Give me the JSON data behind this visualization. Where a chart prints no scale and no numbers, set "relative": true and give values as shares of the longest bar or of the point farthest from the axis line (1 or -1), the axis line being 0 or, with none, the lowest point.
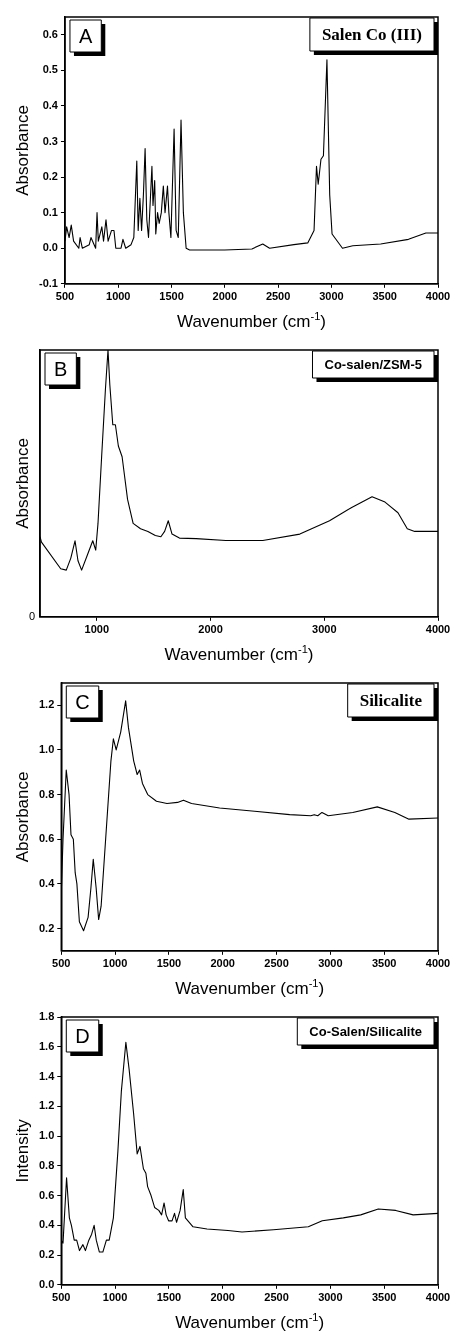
{
  "chart_data": [
    {
      "type": "line",
      "title": "Salen Co (III)",
      "annotations": [
        "A"
      ],
      "xlabel": "Wavenumber (cm$^{-1}$)",
      "ylabel": "Absorbance",
      "color": "#000000",
      "x": [
        500,
        516,
        539,
        559,
        581,
        630,
        642,
        663,
        728,
        744,
        788,
        801,
        813,
        846,
        862,
        885,
        905,
        937,
        960,
        977,
        1026,
        1044,
        1070,
        1120,
        1146,
        1174,
        1187,
        1203,
        1219,
        1236,
        1252,
        1268,
        1284,
        1316,
        1326,
        1342,
        1352,
        1369,
        1384,
        1404,
        1423,
        1439,
        1462,
        1475,
        1494,
        1524,
        1543,
        1563,
        1589,
        1611,
        1637,
        1670,
        1800,
        1998,
        2254,
        2356,
        2420,
        2648,
        2778,
        2837,
        2860,
        2876,
        2902,
        2925,
        2958,
        2984,
        3006,
        3104,
        3201,
        3462,
        3723,
        3886,
        4000
      ],
      "values": [
        0.02,
        0.06,
        0.03,
        0.065,
        0.02,
        0.0,
        0.03,
        0.0,
        0.01,
        0.03,
        0.0,
        0.1,
        0.02,
        0.06,
        0.02,
        0.08,
        0.02,
        0.05,
        0.05,
        0.0,
        0.0,
        0.025,
        0.0,
        0.01,
        0.03,
        0.245,
        0.05,
        0.14,
        0.05,
        0.15,
        0.28,
        0.08,
        0.03,
        0.23,
        0.12,
        0.19,
        0.04,
        0.1,
        0.07,
        0.1,
        0.175,
        0.1,
        0.175,
        0.1,
        0.03,
        0.335,
        0.05,
        0.03,
        0.36,
        0.1,
        0.0,
        -0.005,
        -0.005,
        -0.005,
        -0.002,
        0.012,
        0.0,
        0.01,
        0.015,
        0.05,
        0.23,
        0.18,
        0.25,
        0.26,
        0.53,
        0.15,
        0.04,
        0.0,
        0.007,
        0.012,
        0.025,
        0.043,
        0.043
      ],
      "xlim": [
        500,
        4000
      ],
      "xticks": [
        500,
        1000,
        1500,
        2000,
        2500,
        3000,
        3500,
        4000
      ],
      "ylim": [
        -0.1,
        0.65
      ],
      "yticks": [
        {
          "value": -0.1,
          "label": "-0.1"
        },
        {
          "value": 0,
          "label": "0.0"
        },
        {
          "value": 0.1,
          "label": "0.1"
        },
        {
          "value": 0.2,
          "label": "0.2"
        },
        {
          "value": 0.3,
          "label": "0.3"
        },
        {
          "value": 0.4,
          "label": "0.4"
        },
        {
          "value": 0.5,
          "label": "0.5"
        },
        {
          "value": 0.6,
          "label": "0.6"
        }
      ]
    },
    {
      "type": "line",
      "title": "Co-salen/ZSM-5",
      "annotations": [
        "B",
        "0"
      ],
      "xlabel": "Wavenumber (cm$^{-1}$)",
      "ylabel": "Absorbance",
      "color": "#000000",
      "relative": true,
      "x": [
        500,
        513,
        682,
        731,
        771,
        808,
        834,
        866,
        915,
        964,
        990,
        1010,
        1042,
        1075,
        1098,
        1114,
        1140,
        1163,
        1189,
        1222,
        1270,
        1319,
        1384,
        1449,
        1514,
        1563,
        1596,
        1628,
        1661,
        1726,
        1873,
        2134,
        2459,
        2785,
        3046,
        3241,
        3420,
        3534,
        3648,
        3730,
        3795,
        4000
      ],
      "values": [
        0.3,
        0.28,
        0.18,
        0.175,
        0.22,
        0.285,
        0.21,
        0.175,
        0.23,
        0.285,
        0.25,
        0.35,
        0.6,
        0.85,
        1.0,
        0.87,
        0.72,
        0.72,
        0.64,
        0.6,
        0.44,
        0.35,
        0.33,
        0.32,
        0.305,
        0.3,
        0.32,
        0.36,
        0.31,
        0.295,
        0.293,
        0.286,
        0.286,
        0.31,
        0.36,
        0.41,
        0.45,
        0.43,
        0.39,
        0.33,
        0.32,
        0.32
      ],
      "xlim": [
        500,
        4000
      ],
      "xticks": [
        1000,
        2000,
        3000,
        4000
      ]
    },
    {
      "type": "line",
      "title": "Silicalite",
      "annotations": [
        "C"
      ],
      "xlabel": "Wavenumber (cm$^{-1}$)",
      "ylabel": "Absorbance",
      "color": "#000000",
      "x": [
        500,
        516,
        546,
        572,
        590,
        612,
        629,
        645,
        668,
        707,
        749,
        775,
        797,
        824,
        847,
        870,
        912,
        961,
        984,
        1010,
        1052,
        1098,
        1124,
        1173,
        1205,
        1228,
        1254,
        1303,
        1384,
        1482,
        1580,
        1635,
        1710,
        1971,
        2296,
        2622,
        2818,
        2850,
        2883,
        2922,
        2980,
        3208,
        3436,
        3599,
        3730,
        4000
      ],
      "values": [
        0.36,
        0.6,
        0.91,
        0.8,
        0.62,
        0.6,
        0.45,
        0.4,
        0.23,
        0.19,
        0.25,
        0.38,
        0.51,
        0.38,
        0.24,
        0.3,
        0.6,
        0.95,
        1.05,
        1.0,
        1.08,
        1.22,
        1.1,
        0.95,
        0.89,
        0.91,
        0.85,
        0.8,
        0.77,
        0.76,
        0.765,
        0.775,
        0.76,
        0.74,
        0.725,
        0.71,
        0.705,
        0.71,
        0.705,
        0.72,
        0.705,
        0.72,
        0.745,
        0.72,
        0.69,
        0.695
      ],
      "xlim": [
        500,
        4000
      ],
      "xticks": [
        500,
        1000,
        1500,
        2000,
        2500,
        3000,
        3500,
        4000
      ],
      "ylim": [
        0.1,
        1.3
      ],
      "yticks": [
        {
          "value": 0.2,
          "label": "0.2"
        },
        {
          "value": 0.4,
          "label": "0.4"
        },
        {
          "value": 0.6,
          "label": "0.6"
        },
        {
          "value": 0.8,
          "label": "0.8"
        },
        {
          "value": 1,
          "label": "1.0"
        },
        {
          "value": 1.2,
          "label": "1.2"
        }
      ]
    },
    {
      "type": "line",
      "title": "Co-Salen/Silicalite",
      "annotations": [
        "D"
      ],
      "xlabel": "Wavenumber (cm$^{-1}$)",
      "ylabel": "Intensity",
      "color": "#000000",
      "x": [
        500,
        516,
        549,
        575,
        594,
        620,
        643,
        669,
        701,
        724,
        756,
        782,
        805,
        825,
        854,
        886,
        919,
        945,
        984,
        1026,
        1058,
        1100,
        1130,
        1172,
        1205,
        1231,
        1263,
        1286,
        1302,
        1334,
        1367,
        1406,
        1432,
        1455,
        1474,
        1497,
        1529,
        1552,
        1571,
        1604,
        1633,
        1653,
        1724,
        1854,
        2049,
        2179,
        2471,
        2795,
        2925,
        3120,
        3282,
        3445,
        3607,
        3769,
        4000
      ],
      "values": [
        0.3,
        0.28,
        0.72,
        0.45,
        0.4,
        0.3,
        0.3,
        0.23,
        0.27,
        0.23,
        0.3,
        0.34,
        0.4,
        0.3,
        0.22,
        0.22,
        0.3,
        0.3,
        0.45,
        0.9,
        1.3,
        1.63,
        1.45,
        1.15,
        0.88,
        0.93,
        0.78,
        0.75,
        0.66,
        0.6,
        0.52,
        0.5,
        0.47,
        0.55,
        0.47,
        0.43,
        0.43,
        0.48,
        0.42,
        0.5,
        0.64,
        0.45,
        0.39,
        0.375,
        0.365,
        0.355,
        0.37,
        0.39,
        0.43,
        0.45,
        0.47,
        0.51,
        0.5,
        0.47,
        0.48
      ],
      "xlim": [
        500,
        4000
      ],
      "xticks": [
        500,
        1000,
        1500,
        2000,
        2500,
        3000,
        3500,
        4000
      ],
      "ylim": [
        0,
        1.8
      ],
      "yticks": [
        {
          "value": 0,
          "label": "0.0"
        },
        {
          "value": 0.2,
          "label": "0.2"
        },
        {
          "value": 0.4,
          "label": "0.4"
        },
        {
          "value": 0.6,
          "label": "0.6"
        },
        {
          "value": 0.8,
          "label": "0.8"
        },
        {
          "value": 1,
          "label": "1.0"
        },
        {
          "value": 1.2,
          "label": "1.2"
        },
        {
          "value": 1.4,
          "label": "1.4"
        },
        {
          "value": 1.6,
          "label": "1.6"
        },
        {
          "value": 1.8,
          "label": "1.8"
        }
      ]
    }
  ]
}
